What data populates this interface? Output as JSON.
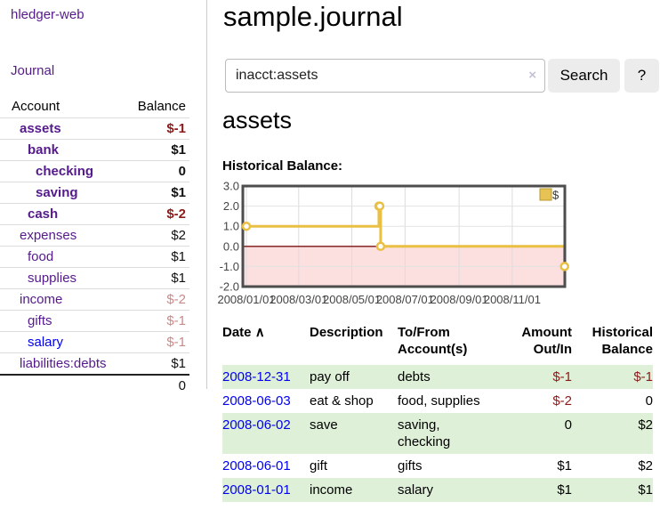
{
  "app": {
    "brand": "hledger-web"
  },
  "sidebar": {
    "journal_link": "Journal",
    "account_header": "Account",
    "balance_header": "Balance",
    "rows": [
      {
        "account": "assets",
        "balance": "$-1",
        "depth": 1,
        "bold": true,
        "neg": "dark",
        "link": "purple"
      },
      {
        "account": "bank",
        "balance": "$1",
        "depth": 2,
        "bold": true,
        "neg": null,
        "link": "purple"
      },
      {
        "account": "checking",
        "balance": "0",
        "depth": 3,
        "bold": true,
        "neg": null,
        "link": "purple"
      },
      {
        "account": "saving",
        "balance": "$1",
        "depth": 3,
        "bold": true,
        "neg": null,
        "link": "purple"
      },
      {
        "account": "cash",
        "balance": "$-2",
        "depth": 2,
        "bold": true,
        "neg": "dark",
        "link": "purple"
      },
      {
        "account": "expenses",
        "balance": "$2",
        "depth": 1,
        "bold": false,
        "neg": null,
        "link": "purple"
      },
      {
        "account": "food",
        "balance": "$1",
        "depth": 2,
        "bold": false,
        "neg": null,
        "link": "purple"
      },
      {
        "account": "supplies",
        "balance": "$1",
        "depth": 2,
        "bold": false,
        "neg": null,
        "link": "purple"
      },
      {
        "account": "income",
        "balance": "$-2",
        "depth": 1,
        "bold": false,
        "neg": "dim",
        "link": "purple"
      },
      {
        "account": "gifts",
        "balance": "$-1",
        "depth": 2,
        "bold": false,
        "neg": "dim",
        "link": "purple"
      },
      {
        "account": "salary",
        "balance": "$-1",
        "depth": 2,
        "bold": false,
        "neg": "dim",
        "link": "blue"
      },
      {
        "account": "liabilities:debts",
        "balance": "$1",
        "depth": 1,
        "bold": false,
        "neg": null,
        "link": "purple"
      }
    ],
    "total": "0"
  },
  "header": {
    "title": "sample.journal"
  },
  "search": {
    "value": "inacct:assets",
    "clear_icon": "×",
    "button_label": "Search",
    "help_label": "?"
  },
  "account_page": {
    "heading": "assets",
    "chart_label": "Historical Balance:"
  },
  "chart_data": {
    "type": "line",
    "steps": true,
    "title": "Historical Balance:",
    "series": [
      {
        "name": "$",
        "color": "#e9c043",
        "points": [
          [
            "2008-01-01",
            1
          ],
          [
            "2008-06-01",
            2
          ],
          [
            "2008-06-02",
            2
          ],
          [
            "2008-06-03",
            0
          ],
          [
            "2008-12-31",
            -1
          ]
        ]
      }
    ],
    "x_ticks": [
      "2008/01/01",
      "2008/03/01",
      "2008/05/01",
      "2008/07/01",
      "2008/09/01",
      "2008/11/01"
    ],
    "y_ticks": [
      "3.0",
      "2.0",
      "1.0",
      "0.0",
      "-1.0",
      "-2.0"
    ],
    "ylim": [
      -2,
      3
    ],
    "x_range": [
      "2008-01-01",
      "2008-12-31"
    ],
    "legend": {
      "label": "$",
      "position": "top-right"
    },
    "grid": true,
    "negative_region_fill": "#fcdfdf",
    "zero_line_color": "#7d1212"
  },
  "register": {
    "sort_icon": "∧",
    "columns": [
      {
        "label": "Date"
      },
      {
        "label": "Description"
      },
      {
        "label": "To/From Account(s)"
      },
      {
        "label": "Amount Out/In"
      },
      {
        "label": "Historical Balance"
      }
    ],
    "rows": [
      {
        "date": "2008-12-31",
        "description": "pay off",
        "accounts": "debts",
        "amount": "$-1",
        "balance": "$-1"
      },
      {
        "date": "2008-06-03",
        "description": "eat & shop",
        "accounts": "food, supplies",
        "amount": "$-2",
        "balance": "0"
      },
      {
        "date": "2008-06-02",
        "description": "save",
        "accounts": "saving, checking",
        "amount": "0",
        "balance": "$2"
      },
      {
        "date": "2008-06-01",
        "description": "gift",
        "accounts": "gifts",
        "amount": "$1",
        "balance": "$2"
      },
      {
        "date": "2008-01-01",
        "description": "income",
        "accounts": "salary",
        "amount": "$1",
        "balance": "$1"
      }
    ]
  },
  "colors": {
    "accent_purple": "#551a8b",
    "link_blue": "#0000ee",
    "negative_red": "#8b1a1a",
    "dim_negative_red": "#c88a8a",
    "row_stripe_green": "#dff0d8",
    "chart_gold": "#e9c043",
    "negative_fill_pink": "#fcdfdf"
  }
}
